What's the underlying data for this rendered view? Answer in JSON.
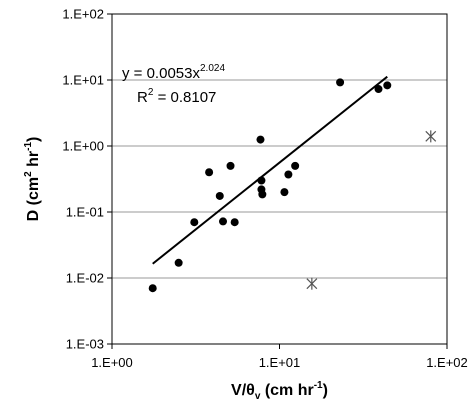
{
  "chart_data": {
    "type": "scatter",
    "x_scale": "log",
    "y_scale": "log",
    "xlim": [
      1,
      100
    ],
    "ylim": [
      0.001,
      100
    ],
    "x_tick_labels": [
      "1.E+00",
      "1.E+01",
      "1.E+02"
    ],
    "y_tick_labels": [
      "1.E-03",
      "1.E-02",
      "1.E-01",
      "1.E+00",
      "1.E+01",
      "1.E+02"
    ],
    "xlabel": {
      "base": "V/θ",
      "sub": "v",
      "rest": " (cm hr",
      "sup": "-1",
      "end": ")"
    },
    "ylabel": {
      "base": "D (cm",
      "sup1": "2",
      "mid": " hr",
      "sup2": "-1",
      "end": ")"
    },
    "grid": {
      "horizontal": true,
      "vertical": false
    },
    "equation": {
      "base": "y = 0.0053x",
      "exponent": "2.024"
    },
    "r_squared": {
      "base": "R",
      "sup": "2",
      "rest": " = 0.8107"
    },
    "series": [
      {
        "marker": "circle",
        "color": "#000000",
        "points": [
          [
            1.75,
            0.007
          ],
          [
            2.5,
            0.017
          ],
          [
            3.1,
            0.07
          ],
          [
            3.8,
            0.4
          ],
          [
            4.4,
            0.175
          ],
          [
            4.6,
            0.072
          ],
          [
            5.1,
            0.5
          ],
          [
            5.4,
            0.07
          ],
          [
            7.7,
            1.25
          ],
          [
            7.8,
            0.3
          ],
          [
            7.8,
            0.22
          ],
          [
            7.9,
            0.185
          ],
          [
            10.7,
            0.2
          ],
          [
            11.3,
            0.37
          ],
          [
            12.4,
            0.5
          ],
          [
            23.0,
            9.2
          ],
          [
            39.0,
            7.3
          ],
          [
            44.0,
            8.3
          ]
        ]
      },
      {
        "marker": "asterisk",
        "color": "#555555",
        "points": [
          [
            15.6,
            0.0082
          ],
          [
            80.0,
            1.4
          ]
        ]
      }
    ],
    "trendline": {
      "type": "power",
      "coefficient": 0.0053,
      "exponent": 2.024,
      "x_range": [
        1.75,
        44.0
      ],
      "color": "#000000"
    }
  }
}
